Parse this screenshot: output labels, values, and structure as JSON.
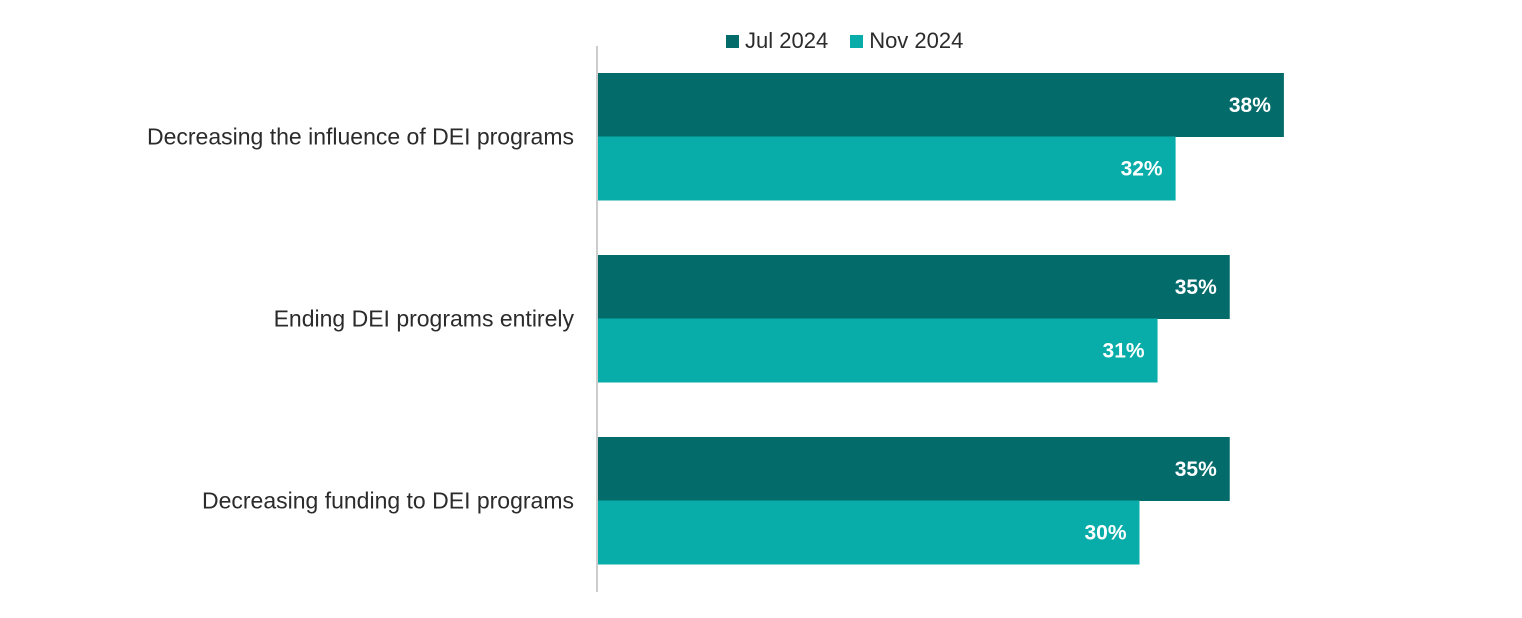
{
  "chart_data": {
    "type": "bar",
    "orientation": "horizontal",
    "categories": [
      "Decreasing the influence of DEI programs",
      "Ending DEI programs entirely",
      "Decreasing funding to DEI programs"
    ],
    "series": [
      {
        "name": "Jul 2024",
        "values": [
          38,
          35,
          35
        ],
        "labels": [
          "38%",
          "35%",
          "35%"
        ],
        "color": "#046b6b"
      },
      {
        "name": "Nov 2024",
        "values": [
          32,
          31,
          30
        ],
        "labels": [
          "32%",
          "31%",
          "30%"
        ],
        "color": "#08ada9"
      }
    ],
    "xlim": [
      0,
      50
    ],
    "grid": false,
    "legend_position": "top"
  }
}
